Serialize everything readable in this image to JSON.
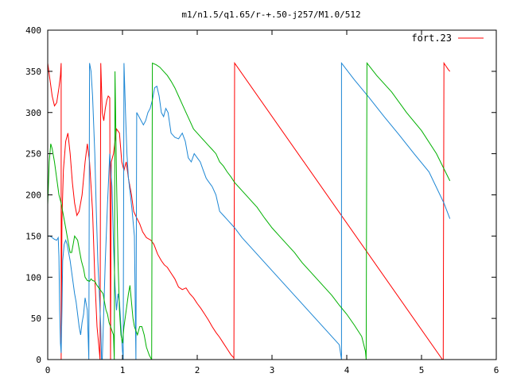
{
  "chart_data": {
    "type": "line",
    "title": "m1/n1.5/q1.65/r-+.50-j257/M1.0/512",
    "xlabel": "",
    "ylabel": "",
    "xlim": [
      0,
      6
    ],
    "ylim": [
      0,
      400
    ],
    "xticks": [
      "0",
      "1",
      "2",
      "3",
      "4",
      "5",
      "6"
    ],
    "yticks": [
      "0",
      "50",
      "100",
      "150",
      "200",
      "250",
      "300",
      "350",
      "400"
    ],
    "grid": false,
    "legend_position": "top-right",
    "legend": [
      "fort.23"
    ],
    "series": [
      {
        "name": "fort.23",
        "color": "#ff0000",
        "points": [
          [
            0.0,
            360
          ],
          [
            0.03,
            340
          ],
          [
            0.06,
            320
          ],
          [
            0.09,
            308
          ],
          [
            0.12,
            312
          ],
          [
            0.15,
            330
          ],
          [
            0.17,
            345
          ],
          [
            0.18,
            360
          ],
          [
            0.18,
            0
          ],
          [
            0.19,
            170
          ],
          [
            0.21,
            230
          ],
          [
            0.24,
            265
          ],
          [
            0.27,
            275
          ],
          [
            0.3,
            250
          ],
          [
            0.33,
            215
          ],
          [
            0.36,
            190
          ],
          [
            0.39,
            175
          ],
          [
            0.42,
            180
          ],
          [
            0.46,
            200
          ],
          [
            0.5,
            240
          ],
          [
            0.53,
            262
          ],
          [
            0.56,
            240
          ],
          [
            0.6,
            180
          ],
          [
            0.63,
            100
          ],
          [
            0.66,
            40
          ],
          [
            0.69,
            10
          ],
          [
            0.7,
            0
          ],
          [
            0.71,
            360
          ],
          [
            0.73,
            300
          ],
          [
            0.75,
            290
          ],
          [
            0.77,
            305
          ],
          [
            0.79,
            315
          ],
          [
            0.81,
            320
          ],
          [
            0.83,
            318
          ],
          [
            0.84,
            0
          ],
          [
            0.85,
            240
          ],
          [
            0.88,
            250
          ],
          [
            0.92,
            280
          ],
          [
            0.96,
            275
          ],
          [
            0.99,
            240
          ],
          [
            1.02,
            230
          ],
          [
            1.05,
            240
          ],
          [
            1.08,
            220
          ],
          [
            1.12,
            200
          ],
          [
            1.15,
            180
          ],
          [
            1.19,
            172
          ],
          [
            1.23,
            165
          ],
          [
            1.27,
            155
          ],
          [
            1.32,
            148
          ],
          [
            1.38,
            145
          ],
          [
            1.42,
            140
          ],
          [
            1.47,
            128
          ],
          [
            1.52,
            120
          ],
          [
            1.56,
            115
          ],
          [
            1.6,
            112
          ],
          [
            1.65,
            105
          ],
          [
            1.7,
            98
          ],
          [
            1.75,
            88
          ],
          [
            1.8,
            85
          ],
          [
            1.85,
            87
          ],
          [
            1.9,
            80
          ],
          [
            1.95,
            75
          ],
          [
            2.0,
            68
          ],
          [
            2.05,
            62
          ],
          [
            2.1,
            55
          ],
          [
            2.15,
            48
          ],
          [
            2.2,
            40
          ],
          [
            2.25,
            33
          ],
          [
            2.3,
            27
          ],
          [
            2.35,
            20
          ],
          [
            2.4,
            13
          ],
          [
            2.45,
            6
          ],
          [
            2.49,
            2
          ],
          [
            2.49,
            0
          ],
          [
            2.5,
            360
          ],
          [
            5.28,
            0
          ],
          [
            5.29,
            0
          ],
          [
            5.3,
            360
          ],
          [
            5.33,
            356
          ],
          [
            5.36,
            352
          ],
          [
            5.38,
            350
          ]
        ]
      },
      {
        "name": "",
        "color": "#1c86d4",
        "points": [
          [
            0.0,
            150
          ],
          [
            0.03,
            150
          ],
          [
            0.06,
            148
          ],
          [
            0.09,
            146
          ],
          [
            0.12,
            145
          ],
          [
            0.14,
            148
          ],
          [
            0.15,
            125
          ],
          [
            0.16,
            60
          ],
          [
            0.17,
            20
          ],
          [
            0.18,
            8
          ],
          [
            0.19,
            60
          ],
          [
            0.2,
            120
          ],
          [
            0.22,
            140
          ],
          [
            0.24,
            145
          ],
          [
            0.26,
            140
          ],
          [
            0.28,
            130
          ],
          [
            0.3,
            120
          ],
          [
            0.33,
            100
          ],
          [
            0.36,
            80
          ],
          [
            0.38,
            70
          ],
          [
            0.4,
            55
          ],
          [
            0.42,
            40
          ],
          [
            0.44,
            30
          ],
          [
            0.46,
            45
          ],
          [
            0.48,
            55
          ],
          [
            0.5,
            75
          ],
          [
            0.53,
            60
          ],
          [
            0.55,
            0
          ],
          [
            0.56,
            360
          ],
          [
            0.58,
            350
          ],
          [
            0.6,
            320
          ],
          [
            0.63,
            250
          ],
          [
            0.65,
            180
          ],
          [
            0.67,
            120
          ],
          [
            0.69,
            80
          ],
          [
            0.7,
            60
          ],
          [
            0.71,
            40
          ],
          [
            0.72,
            0
          ],
          [
            0.73,
            0
          ],
          [
            0.75,
            60
          ],
          [
            0.77,
            120
          ],
          [
            0.8,
            190
          ],
          [
            0.83,
            250
          ],
          [
            0.86,
            210
          ],
          [
            0.88,
            140
          ],
          [
            0.9,
            90
          ],
          [
            0.92,
            60
          ],
          [
            0.94,
            80
          ],
          [
            0.96,
            70
          ],
          [
            0.98,
            40
          ],
          [
            1.0,
            10
          ],
          [
            1.01,
            0
          ],
          [
            1.02,
            360
          ],
          [
            1.04,
            300
          ],
          [
            1.06,
            250
          ],
          [
            1.08,
            220
          ],
          [
            1.1,
            205
          ],
          [
            1.13,
            180
          ],
          [
            1.16,
            150
          ],
          [
            1.18,
            0
          ],
          [
            1.19,
            300
          ],
          [
            1.22,
            295
          ],
          [
            1.25,
            290
          ],
          [
            1.28,
            285
          ],
          [
            1.31,
            290
          ],
          [
            1.34,
            300
          ],
          [
            1.37,
            305
          ],
          [
            1.4,
            315
          ],
          [
            1.43,
            330
          ],
          [
            1.46,
            332
          ],
          [
            1.49,
            320
          ],
          [
            1.52,
            300
          ],
          [
            1.55,
            295
          ],
          [
            1.58,
            305
          ],
          [
            1.61,
            300
          ],
          [
            1.65,
            275
          ],
          [
            1.7,
            270
          ],
          [
            1.75,
            268
          ],
          [
            1.8,
            275
          ],
          [
            1.84,
            265
          ],
          [
            1.88,
            245
          ],
          [
            1.92,
            240
          ],
          [
            1.96,
            250
          ],
          [
            2.0,
            245
          ],
          [
            2.04,
            240
          ],
          [
            2.08,
            230
          ],
          [
            2.12,
            220
          ],
          [
            2.16,
            215
          ],
          [
            2.2,
            210
          ],
          [
            2.25,
            200
          ],
          [
            2.3,
            180
          ],
          [
            2.35,
            175
          ],
          [
            2.4,
            170
          ],
          [
            2.5,
            160
          ],
          [
            2.6,
            148
          ],
          [
            2.7,
            138
          ],
          [
            2.8,
            128
          ],
          [
            2.9,
            118
          ],
          [
            3.0,
            108
          ],
          [
            3.1,
            98
          ],
          [
            3.2,
            88
          ],
          [
            3.3,
            78
          ],
          [
            3.4,
            68
          ],
          [
            3.5,
            58
          ],
          [
            3.6,
            48
          ],
          [
            3.7,
            38
          ],
          [
            3.8,
            28
          ],
          [
            3.9,
            18
          ],
          [
            3.93,
            0
          ],
          [
            3.93,
            360
          ],
          [
            4.1,
            340
          ],
          [
            4.3,
            318
          ],
          [
            4.5,
            295
          ],
          [
            4.7,
            273
          ],
          [
            4.9,
            250
          ],
          [
            5.1,
            228
          ],
          [
            5.3,
            190
          ],
          [
            5.38,
            171
          ]
        ]
      },
      {
        "name": "",
        "color": "#00b000",
        "points": [
          [
            0.0,
            188
          ],
          [
            0.02,
            240
          ],
          [
            0.04,
            262
          ],
          [
            0.06,
            256
          ],
          [
            0.09,
            240
          ],
          [
            0.12,
            220
          ],
          [
            0.15,
            200
          ],
          [
            0.18,
            190
          ],
          [
            0.2,
            180
          ],
          [
            0.22,
            170
          ],
          [
            0.24,
            160
          ],
          [
            0.26,
            150
          ],
          [
            0.28,
            140
          ],
          [
            0.3,
            130
          ],
          [
            0.32,
            130
          ],
          [
            0.34,
            140
          ],
          [
            0.36,
            150
          ],
          [
            0.4,
            145
          ],
          [
            0.43,
            130
          ],
          [
            0.45,
            120
          ],
          [
            0.48,
            110
          ],
          [
            0.5,
            100
          ],
          [
            0.53,
            96
          ],
          [
            0.56,
            95
          ],
          [
            0.58,
            98
          ],
          [
            0.6,
            96
          ],
          [
            0.63,
            95
          ],
          [
            0.66,
            90
          ],
          [
            0.7,
            85
          ],
          [
            0.74,
            80
          ],
          [
            0.76,
            70
          ],
          [
            0.78,
            60
          ],
          [
            0.8,
            55
          ],
          [
            0.82,
            45
          ],
          [
            0.84,
            40
          ],
          [
            0.86,
            35
          ],
          [
            0.88,
            30
          ],
          [
            0.89,
            0
          ],
          [
            0.9,
            350
          ],
          [
            0.92,
            220
          ],
          [
            0.94,
            120
          ],
          [
            0.96,
            60
          ],
          [
            0.98,
            30
          ],
          [
            1.0,
            20
          ],
          [
            1.02,
            40
          ],
          [
            1.05,
            60
          ],
          [
            1.08,
            80
          ],
          [
            1.1,
            90
          ],
          [
            1.12,
            70
          ],
          [
            1.14,
            50
          ],
          [
            1.16,
            40
          ],
          [
            1.18,
            35
          ],
          [
            1.2,
            30
          ],
          [
            1.23,
            40
          ],
          [
            1.26,
            40
          ],
          [
            1.29,
            30
          ],
          [
            1.32,
            15
          ],
          [
            1.36,
            5
          ],
          [
            1.39,
            0
          ],
          [
            1.4,
            360
          ],
          [
            1.45,
            358
          ],
          [
            1.5,
            355
          ],
          [
            1.55,
            350
          ],
          [
            1.6,
            345
          ],
          [
            1.65,
            338
          ],
          [
            1.7,
            330
          ],
          [
            1.75,
            320
          ],
          [
            1.8,
            310
          ],
          [
            1.85,
            300
          ],
          [
            1.9,
            290
          ],
          [
            1.95,
            280
          ],
          [
            2.0,
            275
          ],
          [
            2.05,
            270
          ],
          [
            2.1,
            265
          ],
          [
            2.15,
            260
          ],
          [
            2.2,
            255
          ],
          [
            2.25,
            250
          ],
          [
            2.3,
            240
          ],
          [
            2.35,
            235
          ],
          [
            2.4,
            228
          ],
          [
            2.45,
            222
          ],
          [
            2.5,
            215
          ],
          [
            2.6,
            205
          ],
          [
            2.7,
            195
          ],
          [
            2.8,
            185
          ],
          [
            2.9,
            172
          ],
          [
            3.0,
            160
          ],
          [
            3.1,
            150
          ],
          [
            3.2,
            140
          ],
          [
            3.3,
            130
          ],
          [
            3.4,
            118
          ],
          [
            3.5,
            108
          ],
          [
            3.6,
            98
          ],
          [
            3.7,
            88
          ],
          [
            3.8,
            78
          ],
          [
            3.9,
            66
          ],
          [
            4.0,
            55
          ],
          [
            4.1,
            42
          ],
          [
            4.2,
            28
          ],
          [
            4.25,
            10
          ],
          [
            4.26,
            0
          ],
          [
            4.27,
            360
          ],
          [
            4.4,
            345
          ],
          [
            4.6,
            325
          ],
          [
            4.8,
            300
          ],
          [
            5.0,
            278
          ],
          [
            5.2,
            250
          ],
          [
            5.38,
            217
          ]
        ]
      }
    ]
  }
}
